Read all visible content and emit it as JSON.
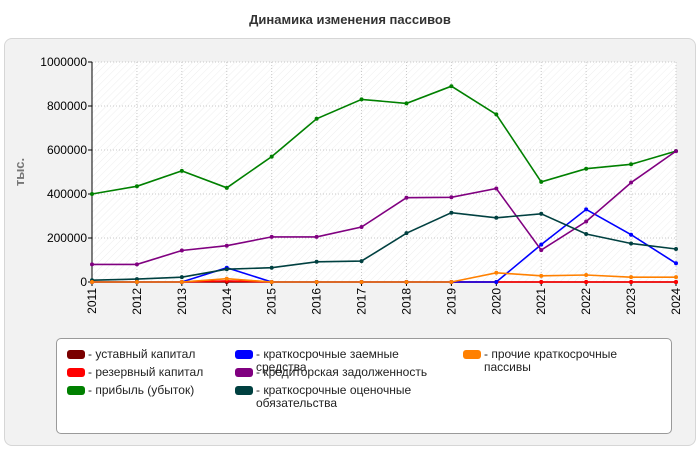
{
  "chart_data": {
    "type": "line",
    "title": "Динамика изменения пассивов",
    "ylabel": "тыс.",
    "xlabel": "",
    "x": [
      "2011",
      "2012",
      "2013",
      "2014",
      "2015",
      "2016",
      "2017",
      "2018",
      "2019",
      "2020",
      "2021",
      "2022",
      "2023",
      "2024"
    ],
    "ylim": [
      0,
      1000000
    ],
    "yticks": [
      "0",
      "200000",
      "400000",
      "600000",
      "800000",
      "1000000"
    ],
    "grid": true,
    "legend": "bottom",
    "series": [
      {
        "name": "уставный капитал",
        "color": "#7a0000",
        "values": [
          0,
          0,
          0,
          0,
          0,
          0,
          0,
          0,
          0,
          0,
          0,
          0,
          0,
          0
        ]
      },
      {
        "name": "резервный капитал",
        "color": "#ff0000",
        "values": [
          0,
          0,
          0,
          5000,
          0,
          0,
          0,
          0,
          0,
          0,
          0,
          0,
          0,
          0
        ]
      },
      {
        "name": "прибыль (убыток)",
        "color": "#008000",
        "values": [
          400000,
          435000,
          505000,
          428000,
          570000,
          742000,
          830000,
          812000,
          890000,
          762000,
          455000,
          515000,
          535000,
          595000
        ]
      },
      {
        "name": "краткосрочные заемные\nсредства",
        "color": "#0000ff",
        "values": [
          0,
          0,
          0,
          65000,
          0,
          0,
          0,
          0,
          0,
          0,
          170000,
          330000,
          215000,
          85000
        ]
      },
      {
        "name": "кредиторская задолженность",
        "color": "#800080",
        "values": [
          80000,
          80000,
          143000,
          165000,
          205000,
          205000,
          250000,
          383000,
          385000,
          425000,
          145000,
          275000,
          452000,
          595000
        ]
      },
      {
        "name": "краткосрочные оценочные\nобязательства",
        "color": "#004040",
        "values": [
          8000,
          13000,
          22000,
          58000,
          65000,
          92000,
          95000,
          222000,
          315000,
          292000,
          310000,
          218000,
          175000,
          150000
        ]
      },
      {
        "name": "прочие краткосрочные\nпассивы",
        "color": "#ff8000",
        "values": [
          0,
          0,
          0,
          15000,
          0,
          0,
          0,
          0,
          0,
          42000,
          28000,
          32000,
          22000,
          22000
        ]
      }
    ]
  }
}
